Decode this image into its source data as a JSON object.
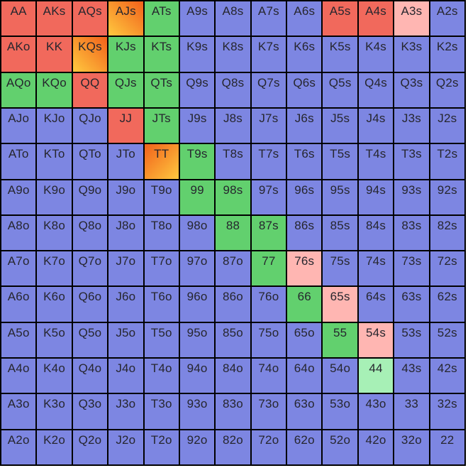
{
  "palette": {
    "blue": "#7d86e2",
    "red": "#f1695c",
    "green": "#62d06e",
    "pink": "#ffb6b2",
    "mint": "#a7f0b6",
    "orange_dark": "#f1611b",
    "orange_light": "#ffc93f",
    "grid_line": "#000000",
    "text": "#26262e"
  },
  "chart_data": {
    "type": "heatmap",
    "title": "",
    "row_ranks": [
      "A",
      "K",
      "Q",
      "J",
      "T",
      "9",
      "8",
      "7",
      "6",
      "5",
      "4",
      "3",
      "2"
    ],
    "col_ranks": [
      "A",
      "K",
      "Q",
      "J",
      "T",
      "9",
      "8",
      "7",
      "6",
      "5",
      "4",
      "3",
      "2"
    ],
    "color_categories": [
      "blue",
      "red",
      "green",
      "pink",
      "mint",
      "orange-bl",
      "orange-br"
    ],
    "rows": [
      {
        "labels": [
          "AA",
          "AKs",
          "AQs",
          "AJs",
          "ATs",
          "A9s",
          "A8s",
          "A7s",
          "A6s",
          "A5s",
          "A4s",
          "A3s",
          "A2s"
        ],
        "colors": [
          "red",
          "red",
          "red",
          "orange-bl",
          "green",
          "blue",
          "blue",
          "blue",
          "blue",
          "red",
          "red",
          "pink",
          "blue"
        ]
      },
      {
        "labels": [
          "AKo",
          "KK",
          "KQs",
          "KJs",
          "KTs",
          "K9s",
          "K8s",
          "K7s",
          "K6s",
          "K5s",
          "K4s",
          "K3s",
          "K2s"
        ],
        "colors": [
          "red",
          "red",
          "orange-bl",
          "green",
          "green",
          "blue",
          "blue",
          "blue",
          "blue",
          "blue",
          "blue",
          "blue",
          "blue"
        ]
      },
      {
        "labels": [
          "AQo",
          "KQo",
          "QQ",
          "QJs",
          "QTs",
          "Q9s",
          "Q8s",
          "Q7s",
          "Q6s",
          "Q5s",
          "Q4s",
          "Q3s",
          "Q2s"
        ],
        "colors": [
          "green",
          "green",
          "red",
          "green",
          "green",
          "blue",
          "blue",
          "blue",
          "blue",
          "blue",
          "blue",
          "blue",
          "blue"
        ]
      },
      {
        "labels": [
          "AJo",
          "KJo",
          "QJo",
          "JJ",
          "JTs",
          "J9s",
          "J8s",
          "J7s",
          "J6s",
          "J5s",
          "J4s",
          "J3s",
          "J2s"
        ],
        "colors": [
          "blue",
          "blue",
          "blue",
          "red",
          "green",
          "blue",
          "blue",
          "blue",
          "blue",
          "blue",
          "blue",
          "blue",
          "blue"
        ]
      },
      {
        "labels": [
          "ATo",
          "KTo",
          "QTo",
          "JTo",
          "TT",
          "T9s",
          "T8s",
          "T7s",
          "T6s",
          "T5s",
          "T4s",
          "T3s",
          "T2s"
        ],
        "colors": [
          "blue",
          "blue",
          "blue",
          "blue",
          "orange-br",
          "green",
          "blue",
          "blue",
          "blue",
          "blue",
          "blue",
          "blue",
          "blue"
        ]
      },
      {
        "labels": [
          "A9o",
          "K9o",
          "Q9o",
          "J9o",
          "T9o",
          "99",
          "98s",
          "97s",
          "96s",
          "95s",
          "94s",
          "93s",
          "92s"
        ],
        "colors": [
          "blue",
          "blue",
          "blue",
          "blue",
          "blue",
          "green",
          "green",
          "blue",
          "blue",
          "blue",
          "blue",
          "blue",
          "blue"
        ]
      },
      {
        "labels": [
          "A8o",
          "K8o",
          "Q8o",
          "J8o",
          "T8o",
          "98o",
          "88",
          "87s",
          "86s",
          "85s",
          "84s",
          "83s",
          "82s"
        ],
        "colors": [
          "blue",
          "blue",
          "blue",
          "blue",
          "blue",
          "blue",
          "green",
          "green",
          "blue",
          "blue",
          "blue",
          "blue",
          "blue"
        ]
      },
      {
        "labels": [
          "A7o",
          "K7o",
          "Q7o",
          "J7o",
          "T7o",
          "97o",
          "87o",
          "77",
          "76s",
          "75s",
          "74s",
          "73s",
          "72s"
        ],
        "colors": [
          "blue",
          "blue",
          "blue",
          "blue",
          "blue",
          "blue",
          "blue",
          "green",
          "pink",
          "blue",
          "blue",
          "blue",
          "blue"
        ]
      },
      {
        "labels": [
          "A6o",
          "K6o",
          "Q6o",
          "J6o",
          "T6o",
          "96o",
          "86o",
          "76o",
          "66",
          "65s",
          "64s",
          "63s",
          "62s"
        ],
        "colors": [
          "blue",
          "blue",
          "blue",
          "blue",
          "blue",
          "blue",
          "blue",
          "blue",
          "green",
          "pink",
          "blue",
          "blue",
          "blue"
        ]
      },
      {
        "labels": [
          "A5o",
          "K5o",
          "Q5o",
          "J5o",
          "T5o",
          "95o",
          "85o",
          "75o",
          "65o",
          "55",
          "54s",
          "53s",
          "52s"
        ],
        "colors": [
          "blue",
          "blue",
          "blue",
          "blue",
          "blue",
          "blue",
          "blue",
          "blue",
          "blue",
          "green",
          "pink",
          "blue",
          "blue"
        ]
      },
      {
        "labels": [
          "A4o",
          "K4o",
          "Q4o",
          "J4o",
          "T4o",
          "94o",
          "84o",
          "74o",
          "64o",
          "54o",
          "44",
          "43s",
          "42s"
        ],
        "colors": [
          "blue",
          "blue",
          "blue",
          "blue",
          "blue",
          "blue",
          "blue",
          "blue",
          "blue",
          "blue",
          "mint",
          "blue",
          "blue"
        ]
      },
      {
        "labels": [
          "A3o",
          "K3o",
          "Q3o",
          "J3o",
          "T3o",
          "93o",
          "83o",
          "73o",
          "63o",
          "53o",
          "43o",
          "33",
          "32s"
        ],
        "colors": [
          "blue",
          "blue",
          "blue",
          "blue",
          "blue",
          "blue",
          "blue",
          "blue",
          "blue",
          "blue",
          "blue",
          "blue",
          "blue"
        ]
      },
      {
        "labels": [
          "A2o",
          "K2o",
          "Q2o",
          "J2o",
          "T2o",
          "92o",
          "82o",
          "72o",
          "62o",
          "52o",
          "42o",
          "32o",
          "22"
        ],
        "colors": [
          "blue",
          "blue",
          "blue",
          "blue",
          "blue",
          "blue",
          "blue",
          "blue",
          "blue",
          "blue",
          "blue",
          "blue",
          "blue"
        ]
      }
    ]
  }
}
